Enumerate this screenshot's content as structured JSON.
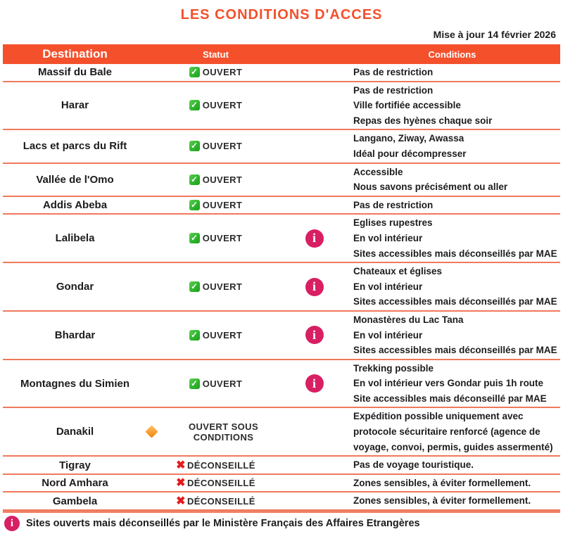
{
  "title": "LES CONDITIONS D'ACCES",
  "updated": "Mise à jour 14 février 2026",
  "columns": {
    "destination": "Destination",
    "statut": "Statut",
    "conditions": "Conditions"
  },
  "rows": [
    {
      "destination": "Massif du Bale",
      "status": "ouvert",
      "status_label": "OUVERT",
      "info": false,
      "conditions": [
        "Pas de restriction"
      ]
    },
    {
      "destination": "Harar",
      "status": "ouvert",
      "status_label": "OUVERT",
      "info": false,
      "conditions": [
        "Pas de restriction",
        "Ville fortifiée accessible",
        "Repas des hyènes chaque soir"
      ]
    },
    {
      "destination": "Lacs et parcs du Rift",
      "status": "ouvert",
      "status_label": "OUVERT",
      "info": false,
      "conditions": [
        "Langano, Ziway, Awassa",
        "Idéal pour décompresser"
      ]
    },
    {
      "destination": "Vallée de l'Omo",
      "status": "ouvert",
      "status_label": "OUVERT",
      "info": false,
      "conditions": [
        "Accessible",
        "Nous savons précisément ou aller"
      ]
    },
    {
      "destination": "Addis Abeba",
      "status": "ouvert",
      "status_label": "OUVERT",
      "info": false,
      "conditions": [
        "Pas de restriction"
      ]
    },
    {
      "destination": "Lalibela",
      "status": "ouvert",
      "status_label": "OUVERT",
      "info": true,
      "conditions": [
        "Eglises rupestres",
        "En vol intérieur",
        "Sites accessibles mais déconseillés par MAE"
      ]
    },
    {
      "destination": "Gondar",
      "status": "ouvert",
      "status_label": "OUVERT",
      "info": true,
      "conditions": [
        "Chateaux et églises",
        "En vol intérieur",
        "Sites accessibles mais déconseillés par MAE"
      ]
    },
    {
      "destination": "Bhardar",
      "status": "ouvert",
      "status_label": "OUVERT",
      "info": true,
      "conditions": [
        "Monastères du Lac Tana",
        "En vol intérieur",
        "Sites accessibles mais déconseillés par MAE"
      ]
    },
    {
      "destination": "Montagnes du Simien",
      "status": "ouvert",
      "status_label": "OUVERT",
      "info": true,
      "conditions": [
        "Trekking possible",
        "En vol intérieur vers Gondar puis 1h route",
        "Site accessibles mais déconseillé par MAE"
      ]
    },
    {
      "destination": "Danakil",
      "status": "sous-conditions",
      "status_label": "OUVERT SOUS CONDITIONS",
      "info": false,
      "conditions": [
        "Expédition possible uniquement avec",
        "protocole sécuritaire renforcé (agence de",
        "voyage, convoi, permis, guides assermenté)"
      ]
    },
    {
      "destination": "Tigray",
      "status": "deconseille",
      "status_label": "DÉCONSEILLÉ",
      "info": false,
      "conditions": [
        "Pas de voyage touristique."
      ]
    },
    {
      "destination": "Nord Amhara",
      "status": "deconseille",
      "status_label": "DÉCONSEILLÉ",
      "info": false,
      "conditions": [
        "Zones sensibles, à éviter formellement."
      ]
    },
    {
      "destination": "Gambela",
      "status": "deconseille",
      "status_label": "DÉCONSEILLÉ",
      "info": false,
      "conditions": [
        "Zones sensibles, à éviter formellement."
      ]
    }
  ],
  "status_icons": {
    "ouvert": "green-check-icon",
    "sous-conditions": "orange-diamond-icon",
    "deconseille": "red-cross-icon"
  },
  "footer": {
    "text": "Sites ouverts mais déconseillés par le Ministère Français des Affaires Etrangères"
  },
  "colors": {
    "accent": "#F4502C",
    "divider": "#F0795C",
    "open_green": "#2EB62E",
    "warning_orange": "#F9A23B",
    "deconseille_red": "#E31B1C",
    "info_pink": "#D81F63"
  }
}
